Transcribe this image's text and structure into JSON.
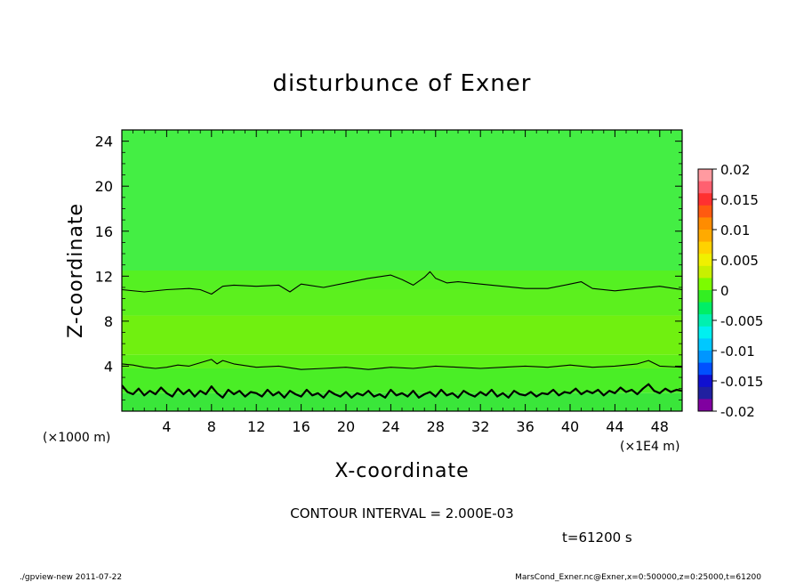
{
  "chart_data": {
    "type": "heatmap",
    "title": "disturbunce of Exner",
    "xlabel": "X-coordinate",
    "ylabel": "Z-coordinate",
    "x_unit": "(×1E4 m)",
    "y_unit": "(×1000 m)",
    "xlim": [
      0,
      50
    ],
    "ylim": [
      0,
      25
    ],
    "x_ticks": [
      4,
      8,
      12,
      16,
      20,
      24,
      28,
      32,
      36,
      40,
      44,
      48
    ],
    "y_ticks": [
      4,
      8,
      12,
      16,
      20,
      24
    ],
    "colorbar": {
      "min": -0.02,
      "max": 0.02,
      "tick_labels": [
        "0.02",
        "0.015",
        "0.01",
        "0.005",
        "0",
        "-0.005",
        "-0.01",
        "-0.015",
        "-0.02"
      ],
      "colors": [
        "#ff9aa0",
        "#ff6070",
        "#ff3030",
        "#ff5a10",
        "#ff8c00",
        "#ffaa00",
        "#ffd200",
        "#f0f000",
        "#c8f000",
        "#7cfc00",
        "#33ee22",
        "#00ee66",
        "#00f0b0",
        "#00f0f0",
        "#00c8ff",
        "#0096ff",
        "#0050ff",
        "#1010d0",
        "#2020a0",
        "#8000a0"
      ]
    },
    "bands": [
      {
        "z_top": 25,
        "z_bottom": 12.5,
        "value": 0.0003,
        "color": "#44ee44"
      },
      {
        "z_top": 12.5,
        "z_bottom": 10.8,
        "value": 0.0006,
        "color": "#55f022"
      },
      {
        "z_top": 10.8,
        "z_bottom": 8.5,
        "value": 0.001,
        "color": "#5cf01e"
      },
      {
        "z_top": 8.5,
        "z_bottom": 5.0,
        "value": 0.0018,
        "color": "#70f010"
      },
      {
        "z_top": 5.0,
        "z_bottom": 3.8,
        "value": 0.0012,
        "color": "#5ef018"
      },
      {
        "z_top": 3.8,
        "z_bottom": 1.6,
        "value": 0.0006,
        "color": "#4aee26"
      },
      {
        "z_top": 1.6,
        "z_bottom": 0,
        "value": 0.0001,
        "color": "#3ae63a"
      }
    ],
    "contours": [
      {
        "level": 0.002,
        "x": [
          0,
          2,
          4,
          6,
          7,
          8,
          9,
          10,
          12,
          14,
          15,
          16,
          18,
          20,
          22,
          24,
          25,
          26,
          27,
          27.5,
          28,
          29,
          30,
          32,
          34,
          36,
          38,
          40,
          41,
          42,
          44,
          46,
          48,
          50
        ],
        "z": [
          10.8,
          10.6,
          10.8,
          10.9,
          10.8,
          10.4,
          11.1,
          11.2,
          11.1,
          11.2,
          10.6,
          11.3,
          11.0,
          11.4,
          11.8,
          12.1,
          11.7,
          11.2,
          11.9,
          12.4,
          11.8,
          11.4,
          11.5,
          11.3,
          11.1,
          10.9,
          10.9,
          11.3,
          11.5,
          10.9,
          10.7,
          10.9,
          11.1,
          10.8
        ]
      },
      {
        "level": 0.002,
        "x": [
          0,
          1,
          2,
          3,
          4,
          5,
          6,
          7,
          8,
          8.5,
          9,
          10,
          12,
          14,
          16,
          18,
          20,
          22,
          24,
          26,
          28,
          30,
          32,
          34,
          36,
          38,
          40,
          42,
          44,
          46,
          47,
          48,
          50
        ],
        "z": [
          4.2,
          4.1,
          3.9,
          3.8,
          3.9,
          4.1,
          4.0,
          4.3,
          4.6,
          4.2,
          4.5,
          4.2,
          3.9,
          4.0,
          3.7,
          3.8,
          3.9,
          3.7,
          3.9,
          3.8,
          4.0,
          3.9,
          3.8,
          3.9,
          4.0,
          3.9,
          4.1,
          3.9,
          4.0,
          4.2,
          4.5,
          4.0,
          3.9
        ]
      },
      {
        "level": 0.0,
        "x": [
          0,
          0.5,
          1,
          1.5,
          2,
          2.5,
          3,
          3.5,
          4,
          4.5,
          5,
          5.5,
          6,
          6.5,
          7,
          7.5,
          8,
          8.5,
          9,
          9.5,
          10,
          10.5,
          11,
          11.5,
          12,
          12.5,
          13,
          13.5,
          14,
          14.5,
          15,
          15.5,
          16,
          16.5,
          17,
          17.5,
          18,
          18.5,
          19,
          19.5,
          20,
          20.5,
          21,
          21.5,
          22,
          22.5,
          23,
          23.5,
          24,
          24.5,
          25,
          25.5,
          26,
          26.5,
          27,
          27.5,
          28,
          28.5,
          29,
          29.5,
          30,
          30.5,
          31,
          31.5,
          32,
          32.5,
          33,
          33.5,
          34,
          34.5,
          35,
          35.5,
          36,
          36.5,
          37,
          37.5,
          38,
          38.5,
          39,
          39.5,
          40,
          40.5,
          41,
          41.5,
          42,
          42.5,
          43,
          43.5,
          44,
          44.5,
          45,
          45.5,
          46,
          46.5,
          47,
          47.5,
          48,
          48.5,
          49,
          49.5,
          50
        ],
        "z": [
          2.3,
          1.7,
          1.5,
          2.0,
          1.4,
          1.8,
          1.5,
          2.1,
          1.6,
          1.3,
          2.0,
          1.5,
          1.9,
          1.3,
          1.8,
          1.5,
          2.2,
          1.6,
          1.2,
          1.9,
          1.5,
          1.8,
          1.3,
          1.7,
          1.6,
          1.3,
          1.9,
          1.4,
          1.7,
          1.2,
          1.8,
          1.5,
          1.3,
          1.9,
          1.4,
          1.6,
          1.2,
          1.8,
          1.5,
          1.3,
          1.7,
          1.2,
          1.6,
          1.4,
          1.8,
          1.3,
          1.5,
          1.2,
          1.9,
          1.4,
          1.6,
          1.3,
          1.8,
          1.2,
          1.5,
          1.7,
          1.3,
          1.9,
          1.4,
          1.6,
          1.2,
          1.8,
          1.5,
          1.3,
          1.7,
          1.4,
          1.9,
          1.3,
          1.6,
          1.2,
          1.8,
          1.5,
          1.4,
          1.7,
          1.3,
          1.6,
          1.5,
          1.9,
          1.4,
          1.7,
          1.6,
          2.0,
          1.5,
          1.8,
          1.6,
          1.9,
          1.4,
          1.8,
          1.6,
          2.1,
          1.7,
          1.9,
          1.5,
          2.0,
          2.4,
          1.8,
          1.6,
          2.0,
          1.7,
          1.9,
          1.8
        ]
      }
    ]
  },
  "footer": {
    "contour_interval": "CONTOUR INTERVAL = 2.000E-03",
    "time": "t=61200 s",
    "program": "./gpview-new  2011-07-22",
    "source": "MarsCond_Exner.nc@Exner,x=0:500000,z=0:25000,t=61200"
  }
}
